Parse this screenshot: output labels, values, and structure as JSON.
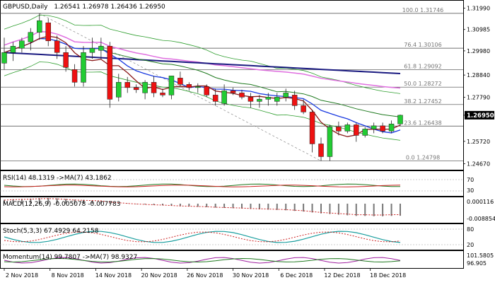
{
  "chart_data": {
    "type": "candlestick",
    "symbol_line": "GBPUSD,Daily",
    "ohlc_label": "1.26541 1.26978 1.26436 1.26950",
    "last_price_label": "1.26950",
    "y_ticks": [
      "1.31990",
      "1.30985",
      "1.29980",
      "1.28840",
      "1.27790",
      "1.26950",
      "1.25720",
      "1.24670"
    ],
    "ylim": [
      1.2445,
      1.3224
    ],
    "x_ticks": [
      "2 Nov 2018",
      "8 Nov 2018",
      "14 Nov 2018",
      "20 Nov 2018",
      "26 Nov 2018",
      "30 Nov 2018",
      "6 Dec 2018",
      "12 Dec 2018",
      "18 Dec 2018"
    ],
    "fib_levels": [
      {
        "label": "100.0 1.31746",
        "value": 1.31746
      },
      {
        "label": "76.4 1.30106",
        "value": 1.30106
      },
      {
        "label": "61.8 1.29092",
        "value": 1.29092
      },
      {
        "label": "50.0 1.28272",
        "value": 1.28272
      },
      {
        "label": "38.2 1.27452",
        "value": 1.27452
      },
      {
        "label": "23.6 1.26438",
        "value": 1.26438
      },
      {
        "label": "0.0 1.24798",
        "value": 1.24798
      }
    ],
    "candles": [
      {
        "o": 1.294,
        "h": 1.306,
        "l": 1.291,
        "c": 1.299
      },
      {
        "o": 1.299,
        "h": 1.304,
        "l": 1.295,
        "c": 1.302
      },
      {
        "o": 1.301,
        "h": 1.306,
        "l": 1.299,
        "c": 1.3045
      },
      {
        "o": 1.304,
        "h": 1.3105,
        "l": 1.3,
        "c": 1.3085
      },
      {
        "o": 1.3085,
        "h": 1.3174,
        "l": 1.305,
        "c": 1.314
      },
      {
        "o": 1.313,
        "h": 1.315,
        "l": 1.302,
        "c": 1.3045
      },
      {
        "o": 1.3045,
        "h": 1.307,
        "l": 1.296,
        "c": 1.299
      },
      {
        "o": 1.299,
        "h": 1.302,
        "l": 1.29,
        "c": 1.292
      },
      {
        "o": 1.291,
        "h": 1.2935,
        "l": 1.283,
        "c": 1.285
      },
      {
        "o": 1.285,
        "h": 1.302,
        "l": 1.283,
        "c": 1.299
      },
      {
        "o": 1.299,
        "h": 1.306,
        "l": 1.296,
        "c": 1.301
      },
      {
        "o": 1.3,
        "h": 1.306,
        "l": 1.296,
        "c": 1.302
      },
      {
        "o": 1.302,
        "h": 1.304,
        "l": 1.273,
        "c": 1.277
      },
      {
        "o": 1.278,
        "h": 1.289,
        "l": 1.276,
        "c": 1.285
      },
      {
        "o": 1.285,
        "h": 1.2875,
        "l": 1.28,
        "c": 1.2825
      },
      {
        "o": 1.2825,
        "h": 1.284,
        "l": 1.28,
        "c": 1.2815
      },
      {
        "o": 1.28,
        "h": 1.286,
        "l": 1.277,
        "c": 1.285
      },
      {
        "o": 1.285,
        "h": 1.288,
        "l": 1.278,
        "c": 1.28
      },
      {
        "o": 1.28,
        "h": 1.282,
        "l": 1.278,
        "c": 1.279
      },
      {
        "o": 1.279,
        "h": 1.288,
        "l": 1.277,
        "c": 1.288
      },
      {
        "o": 1.287,
        "h": 1.29,
        "l": 1.283,
        "c": 1.284
      },
      {
        "o": 1.284,
        "h": 1.285,
        "l": 1.281,
        "c": 1.2825
      },
      {
        "o": 1.2825,
        "h": 1.2845,
        "l": 1.28,
        "c": 1.283
      },
      {
        "o": 1.283,
        "h": 1.284,
        "l": 1.278,
        "c": 1.279
      },
      {
        "o": 1.279,
        "h": 1.282,
        "l": 1.274,
        "c": 1.276
      },
      {
        "o": 1.275,
        "h": 1.284,
        "l": 1.274,
        "c": 1.281
      },
      {
        "o": 1.281,
        "h": 1.2825,
        "l": 1.279,
        "c": 1.28
      },
      {
        "o": 1.28,
        "h": 1.2815,
        "l": 1.277,
        "c": 1.278
      },
      {
        "o": 1.278,
        "h": 1.28,
        "l": 1.273,
        "c": 1.276
      },
      {
        "o": 1.276,
        "h": 1.279,
        "l": 1.273,
        "c": 1.277
      },
      {
        "o": 1.277,
        "h": 1.28,
        "l": 1.274,
        "c": 1.278
      },
      {
        "o": 1.276,
        "h": 1.28,
        "l": 1.274,
        "c": 1.278
      },
      {
        "o": 1.278,
        "h": 1.282,
        "l": 1.276,
        "c": 1.28
      },
      {
        "o": 1.279,
        "h": 1.281,
        "l": 1.272,
        "c": 1.274
      },
      {
        "o": 1.274,
        "h": 1.277,
        "l": 1.27,
        "c": 1.271
      },
      {
        "o": 1.271,
        "h": 1.272,
        "l": 1.252,
        "c": 1.256
      },
      {
        "o": 1.256,
        "h": 1.259,
        "l": 1.248,
        "c": 1.25
      },
      {
        "o": 1.25,
        "h": 1.265,
        "l": 1.248,
        "c": 1.264
      },
      {
        "o": 1.264,
        "h": 1.2665,
        "l": 1.26,
        "c": 1.262
      },
      {
        "o": 1.262,
        "h": 1.266,
        "l": 1.261,
        "c": 1.265
      },
      {
        "o": 1.265,
        "h": 1.266,
        "l": 1.257,
        "c": 1.26
      },
      {
        "o": 1.26,
        "h": 1.264,
        "l": 1.259,
        "c": 1.263
      },
      {
        "o": 1.263,
        "h": 1.266,
        "l": 1.261,
        "c": 1.2645
      },
      {
        "o": 1.2645,
        "h": 1.266,
        "l": 1.261,
        "c": 1.262
      },
      {
        "o": 1.262,
        "h": 1.267,
        "l": 1.261,
        "c": 1.2654
      },
      {
        "o": 1.2654,
        "h": 1.2698,
        "l": 1.2644,
        "c": 1.2695
      }
    ],
    "rsi": {
      "label": "RSI(14) 48.1319 ->MA(7) 43.1862",
      "ticks": [
        "70",
        "30"
      ]
    },
    "macd": {
      "label": "MACD(12,26,9) -0.005078 -0.007783",
      "ticks": [
        "0.000116",
        "-0.008854"
      ],
      "values": [
        0.0025,
        0.0028,
        0.003,
        0.0032,
        0.0035,
        0.0036,
        0.0034,
        0.003,
        0.0026,
        0.0024,
        0.0022,
        0.002,
        0.0012,
        0.0006,
        0.0002,
        -0.0002,
        -0.0005,
        -0.0008,
        -0.001,
        -0.0013,
        -0.0016,
        -0.0018,
        -0.002,
        -0.0022,
        -0.0025,
        -0.0027,
        -0.0029,
        -0.0031,
        -0.0034,
        -0.0036,
        -0.0038,
        -0.004,
        -0.0042,
        -0.0046,
        -0.005,
        -0.0056,
        -0.0062,
        -0.0066,
        -0.007,
        -0.0074,
        -0.0078,
        -0.0078,
        -0.008,
        -0.008,
        -0.0078,
        -0.0077
      ]
    },
    "stoch": {
      "label": "Stoch(5,3,3) 67.4929 64.2158",
      "ticks": [
        "80",
        "20"
      ]
    },
    "momentum": {
      "label": "Momentum(14) 99.7807 ->MA(7) 98.9327",
      "ticks": [
        "101.5805",
        "96.905"
      ]
    }
  }
}
